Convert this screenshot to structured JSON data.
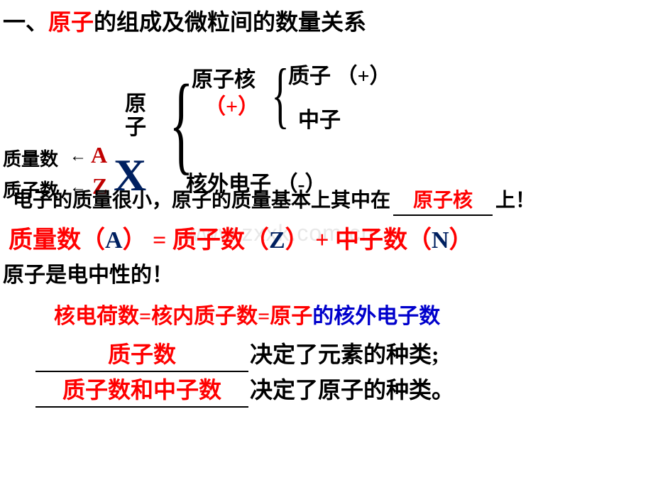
{
  "watermark": "www.zxxk.com,cn",
  "title": {
    "prefix": "一、",
    "highlight": "原子",
    "suffix": "的组成及微粒间的数量关系"
  },
  "colors": {
    "red": "#ff0000",
    "darkred": "#c00000",
    "navy": "#002060",
    "blue": "#0000cc",
    "black": "#000000",
    "bg": "#ffffff"
  },
  "structure": {
    "atom": "原",
    "atom2": "子",
    "nucleus": "原子核",
    "nucleus_sign": "（+）",
    "proton": "质子 （+）",
    "neutron": "中子",
    "electron": "核外电子 （-）"
  },
  "notation": {
    "mass_label": "质量数",
    "proton_label": "质子数",
    "arrow": "←",
    "A": "A",
    "Z": "Z",
    "X": "X"
  },
  "sentence1": {
    "before": "电子的质量很小，原子的质量基本上其中在",
    "fill": "原子核",
    "after": "上！"
  },
  "equation": {
    "p1": "质量数（",
    "v1": "A",
    "p2": "） =  质子数（",
    "v2": "Z",
    "p3": "） + 中子数（",
    "v3": "N",
    "p4": "）"
  },
  "sentence2": "原子是电中性的！",
  "sentence3": {
    "redpart": "核电荷数=核内质子数=原子",
    "bluepart": "的核外电子数"
  },
  "sentence4": {
    "fill": "质子数",
    "rest": "决定了元素的种类;"
  },
  "sentence5": {
    "fill": "质子数和中子数",
    "rest": "决定了原子的种类。"
  }
}
